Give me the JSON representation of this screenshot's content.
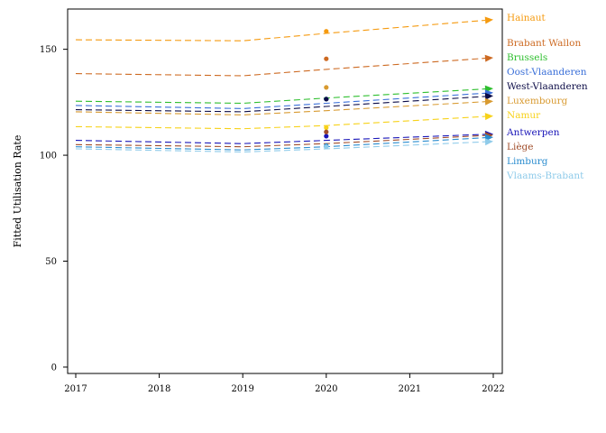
{
  "chart_data": {
    "type": "line",
    "title": "",
    "xlabel": "",
    "ylabel": "Fitted Utilisation Rate",
    "xlim": [
      2017,
      2022
    ],
    "ylim": [
      -3,
      169
    ],
    "x_ticks": [
      2017,
      2018,
      2019,
      2020,
      2021,
      2022
    ],
    "y_ticks": [
      0,
      50,
      100,
      150
    ],
    "grid": false,
    "legend": "right, labels at line ends",
    "series": [
      {
        "name": "Hainaut",
        "color": "#f59a0f",
        "line": [
          [
            2017,
            154.5
          ],
          [
            2019,
            154.0
          ],
          [
            2020,
            157.5
          ],
          [
            2022,
            164.0
          ]
        ],
        "observed_2020": 158.5
      },
      {
        "name": "Brabant Wallon",
        "color": "#cd6a22",
        "line": [
          [
            2017,
            138.5
          ],
          [
            2019,
            137.5
          ],
          [
            2020,
            140.5
          ],
          [
            2022,
            146.0
          ]
        ],
        "observed_2020": 145.5
      },
      {
        "name": "Brussels",
        "color": "#2fbf2f",
        "line": [
          [
            2017,
            125.5
          ],
          [
            2019,
            124.5
          ],
          [
            2020,
            127.0
          ],
          [
            2022,
            131.5
          ]
        ],
        "observed_2020": 126.5
      },
      {
        "name": "Oost-Vlaanderen",
        "color": "#3a6fd8",
        "line": [
          [
            2017,
            123.5
          ],
          [
            2019,
            122.0
          ],
          [
            2020,
            124.5
          ],
          [
            2022,
            129.5
          ]
        ],
        "observed_2020": 126.5
      },
      {
        "name": "West-Vlaanderen",
        "color": "#0b0b46",
        "line": [
          [
            2017,
            121.5
          ],
          [
            2019,
            120.5
          ],
          [
            2020,
            123.0
          ],
          [
            2022,
            128.0
          ]
        ],
        "observed_2020": 126.5
      },
      {
        "name": "Luxembourg",
        "color": "#d89a30",
        "line": [
          [
            2017,
            120.5
          ],
          [
            2019,
            119.0
          ],
          [
            2020,
            121.0
          ],
          [
            2022,
            125.5
          ]
        ],
        "observed_2020": 132.0
      },
      {
        "name": "Namur",
        "color": "#f7d21a",
        "line": [
          [
            2017,
            113.5
          ],
          [
            2019,
            112.5
          ],
          [
            2020,
            114.0
          ],
          [
            2022,
            118.5
          ]
        ],
        "observed_2020": 113.0
      },
      {
        "name": "Antwerpen",
        "color": "#1a16b8",
        "line": [
          [
            2017,
            107.0
          ],
          [
            2019,
            105.5
          ],
          [
            2020,
            107.0
          ],
          [
            2022,
            110.0
          ]
        ],
        "observed_2020": 109.0
      },
      {
        "name": "Liège",
        "color": "#a04d2a",
        "line": [
          [
            2017,
            105.0
          ],
          [
            2019,
            104.0
          ],
          [
            2020,
            105.5
          ],
          [
            2022,
            109.5
          ]
        ],
        "observed_2020": 111.0
      },
      {
        "name": "Limburg",
        "color": "#2a8ccf",
        "line": [
          [
            2017,
            104.0
          ],
          [
            2019,
            102.5
          ],
          [
            2020,
            104.0
          ],
          [
            2022,
            108.5
          ]
        ],
        "observed_2020": 104.5
      },
      {
        "name": "Vlaams-Brabant",
        "color": "#8fcbea",
        "line": [
          [
            2017,
            103.0
          ],
          [
            2019,
            101.5
          ],
          [
            2020,
            103.0
          ],
          [
            2022,
            106.5
          ]
        ],
        "observed_2020": 104.0
      }
    ]
  }
}
